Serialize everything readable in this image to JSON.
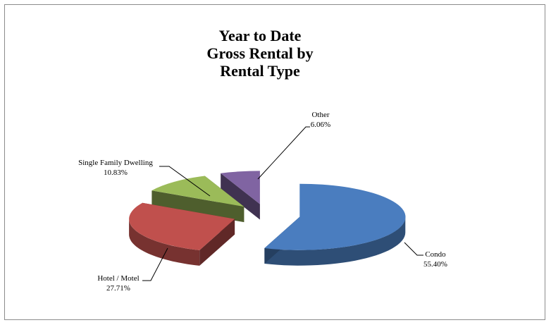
{
  "chart_data": {
    "type": "pie",
    "title_lines": [
      "Year to Date",
      "Gross Rental by",
      "Rental Type"
    ],
    "slices": [
      {
        "label": "Condo",
        "value": 55.4,
        "value_text": "55.40%",
        "color": "#4a7dbf"
      },
      {
        "label": "Hotel / Motel",
        "value": 27.71,
        "value_text": "27.71%",
        "color": "#c0504d"
      },
      {
        "label": "Single Family Dwelling",
        "value": 10.83,
        "value_text": "10.83%",
        "color": "#9bbb59"
      },
      {
        "label": "Other",
        "value": 6.06,
        "value_text": "6.06%",
        "color": "#8064a2"
      }
    ],
    "style": "3d-exploded",
    "legend": "none"
  }
}
